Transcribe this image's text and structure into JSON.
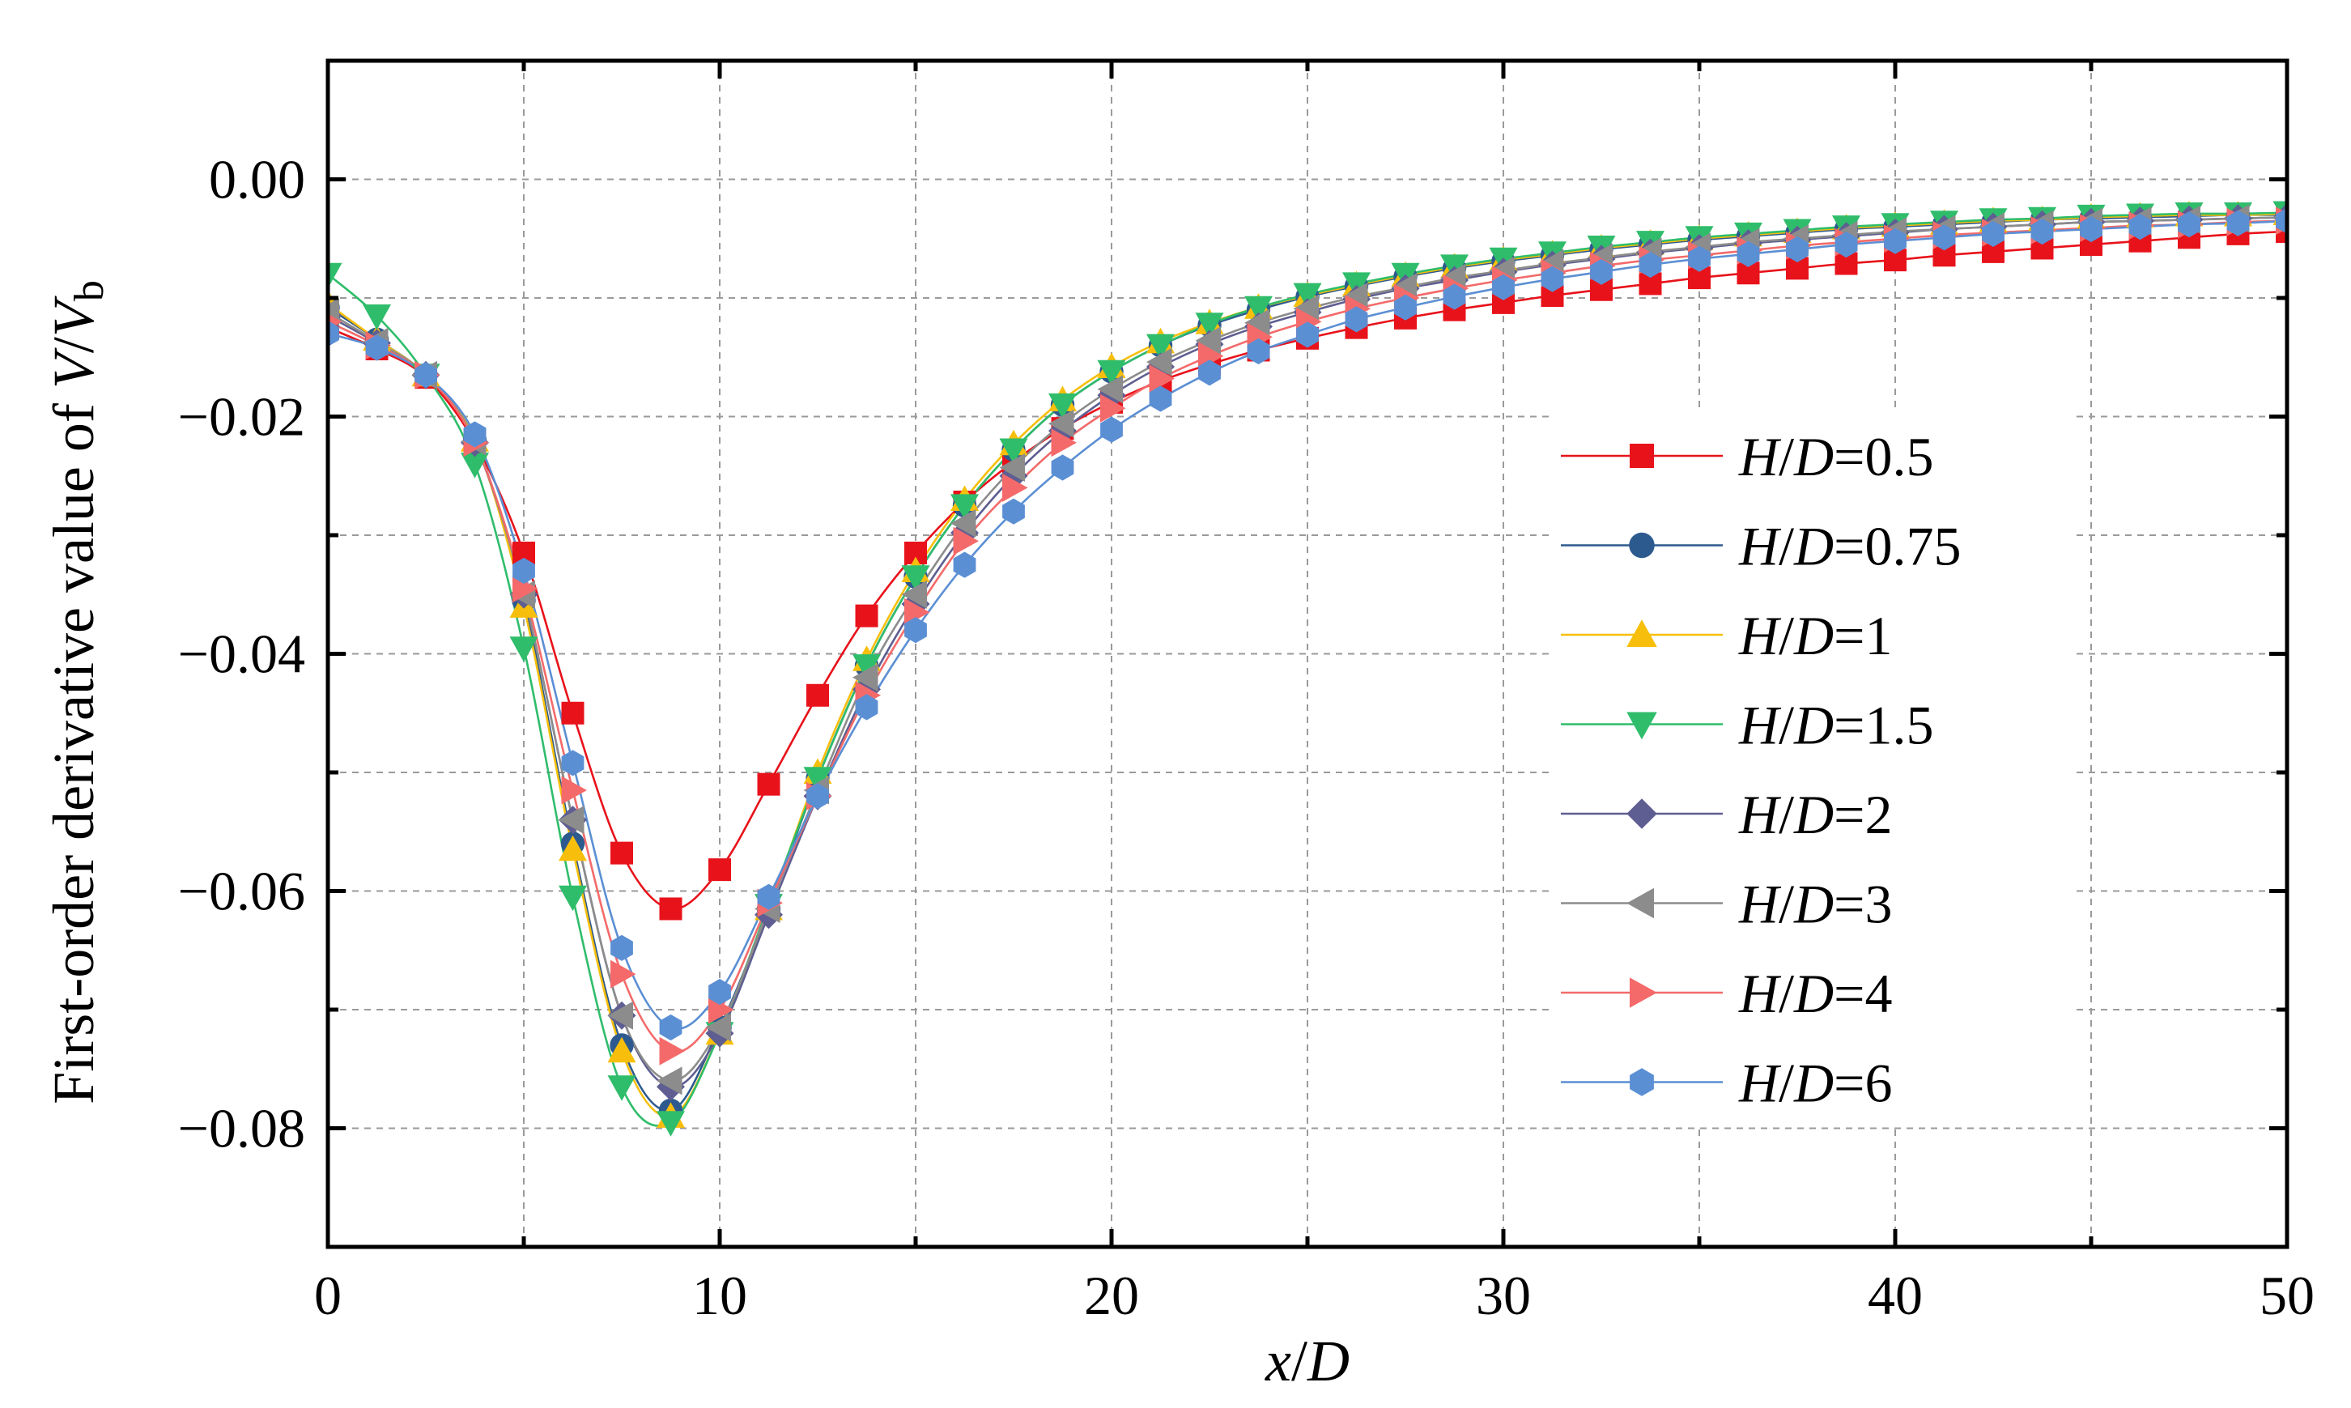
{
  "chart_data": {
    "type": "line",
    "title": "",
    "xlabel": "x/D",
    "ylabel": "First-order derivative value of V/V_b",
    "ylabel_parts": {
      "prefix": "First-order derivative value of ",
      "var1": "V",
      "slash": "/",
      "var2": "V",
      "sub": "b"
    },
    "xlabel_parts": {
      "var1": "x",
      "slash": "/",
      "var2": "D"
    },
    "xlim": [
      0,
      50
    ],
    "ylim": [
      -0.09,
      0.01
    ],
    "xticks": [
      0,
      10,
      20,
      30,
      40,
      50
    ],
    "xtick_labels": [
      "0",
      "10",
      "20",
      "30",
      "40",
      "50"
    ],
    "yticks": [
      0.0,
      -0.02,
      -0.04,
      -0.06,
      -0.08
    ],
    "ytick_labels": [
      "0.00",
      "−0.02",
      "−0.04",
      "−0.06",
      "−0.08"
    ],
    "grid": true,
    "legend_position": "center-right",
    "x": [
      0,
      1.25,
      2.5,
      3.75,
      5,
      6.25,
      7.5,
      8.75,
      10,
      11.25,
      12.5,
      13.75,
      15,
      16.25,
      17.5,
      18.75,
      20,
      21.25,
      22.5,
      23.75,
      25,
      26.25,
      27.5,
      28.75,
      30,
      31.25,
      32.5,
      33.75,
      35,
      36.25,
      37.5,
      38.75,
      40,
      41.25,
      42.5,
      43.75,
      45,
      46.25,
      47.5,
      48.75,
      50
    ],
    "series": [
      {
        "name": "H/D=0.5",
        "label_num": "0.5",
        "color": "#e8121a",
        "marker": "square",
        "values": [
          -0.0125,
          -0.0143,
          -0.0167,
          -0.0222,
          -0.0315,
          -0.045,
          -0.0568,
          -0.0615,
          -0.0582,
          -0.051,
          -0.0435,
          -0.0368,
          -0.0315,
          -0.0272,
          -0.0238,
          -0.021,
          -0.0188,
          -0.017,
          -0.0156,
          -0.0144,
          -0.0134,
          -0.0125,
          -0.0117,
          -0.011,
          -0.0104,
          -0.0098,
          -0.0093,
          -0.0088,
          -0.0083,
          -0.0079,
          -0.0075,
          -0.0071,
          -0.0068,
          -0.0064,
          -0.0061,
          -0.0058,
          -0.0055,
          -0.0052,
          -0.0049,
          -0.0046,
          -0.0044
        ]
      },
      {
        "name": "H/D=0.75",
        "label_num": "0.75",
        "color": "#2d5a8e",
        "marker": "circle",
        "values": [
          -0.0108,
          -0.0135,
          -0.0165,
          -0.022,
          -0.0355,
          -0.056,
          -0.073,
          -0.0785,
          -0.0715,
          -0.0615,
          -0.0505,
          -0.041,
          -0.0335,
          -0.0275,
          -0.0228,
          -0.019,
          -0.0162,
          -0.014,
          -0.0123,
          -0.011,
          -0.0099,
          -0.009,
          -0.0082,
          -0.0075,
          -0.0069,
          -0.0064,
          -0.0059,
          -0.0055,
          -0.0051,
          -0.0048,
          -0.0045,
          -0.0042,
          -0.004,
          -0.0038,
          -0.0036,
          -0.0034,
          -0.0033,
          -0.0032,
          -0.0031,
          -0.003,
          -0.003
        ]
      },
      {
        "name": "H/D=1",
        "label_num": "1",
        "color": "#f7bf0b",
        "marker": "triangle-up",
        "values": [
          -0.0105,
          -0.0135,
          -0.0165,
          -0.022,
          -0.036,
          -0.0565,
          -0.0735,
          -0.079,
          -0.072,
          -0.0615,
          -0.05,
          -0.0405,
          -0.033,
          -0.027,
          -0.0223,
          -0.0186,
          -0.0158,
          -0.0137,
          -0.0121,
          -0.0108,
          -0.0098,
          -0.0089,
          -0.0081,
          -0.0074,
          -0.0068,
          -0.0063,
          -0.0058,
          -0.0054,
          -0.005,
          -0.0047,
          -0.0044,
          -0.0041,
          -0.0039,
          -0.0037,
          -0.0035,
          -0.0034,
          -0.0032,
          -0.0031,
          -0.003,
          -0.003,
          -0.0029
        ]
      },
      {
        "name": "H/D=1.5",
        "label_num": "1.5",
        "color": "#2fbd6b",
        "marker": "triangle-down",
        "values": [
          -0.008,
          -0.0115,
          -0.0165,
          -0.024,
          -0.0395,
          -0.0605,
          -0.0765,
          -0.0795,
          -0.072,
          -0.0612,
          -0.0505,
          -0.041,
          -0.0335,
          -0.0275,
          -0.0228,
          -0.019,
          -0.0162,
          -0.014,
          -0.0122,
          -0.0108,
          -0.0097,
          -0.0088,
          -0.008,
          -0.0073,
          -0.0067,
          -0.0062,
          -0.0057,
          -0.0053,
          -0.0049,
          -0.0046,
          -0.0043,
          -0.004,
          -0.0038,
          -0.0036,
          -0.0034,
          -0.0033,
          -0.0031,
          -0.003,
          -0.0029,
          -0.0029,
          -0.0028
        ]
      },
      {
        "name": "H/D=2",
        "label_num": "2",
        "color": "#5e5e92",
        "marker": "diamond",
        "values": [
          -0.0115,
          -0.0138,
          -0.0165,
          -0.0222,
          -0.035,
          -0.054,
          -0.0705,
          -0.0765,
          -0.072,
          -0.062,
          -0.052,
          -0.043,
          -0.0358,
          -0.0298,
          -0.025,
          -0.0212,
          -0.0182,
          -0.0158,
          -0.0139,
          -0.0124,
          -0.0112,
          -0.0101,
          -0.0092,
          -0.0085,
          -0.0078,
          -0.0072,
          -0.0067,
          -0.0062,
          -0.0058,
          -0.0054,
          -0.0051,
          -0.0048,
          -0.0045,
          -0.0042,
          -0.004,
          -0.0038,
          -0.0036,
          -0.0035,
          -0.0034,
          -0.0033,
          -0.0032
        ]
      },
      {
        "name": "H/D=3",
        "label_num": "3",
        "color": "#8c8c8c",
        "marker": "triangle-left",
        "values": [
          -0.0112,
          -0.0137,
          -0.0165,
          -0.0221,
          -0.035,
          -0.054,
          -0.0705,
          -0.076,
          -0.0715,
          -0.0615,
          -0.0515,
          -0.042,
          -0.035,
          -0.029,
          -0.0243,
          -0.0206,
          -0.0177,
          -0.0154,
          -0.0136,
          -0.0121,
          -0.0109,
          -0.0099,
          -0.0091,
          -0.0083,
          -0.0077,
          -0.0071,
          -0.0066,
          -0.0061,
          -0.0057,
          -0.0053,
          -0.005,
          -0.0047,
          -0.0044,
          -0.0042,
          -0.004,
          -0.0038,
          -0.0036,
          -0.0035,
          -0.0034,
          -0.0033,
          -0.0032
        ]
      },
      {
        "name": "H/D=4",
        "label_num": "4",
        "color": "#f46a6a",
        "marker": "triangle-right",
        "values": [
          -0.012,
          -0.014,
          -0.0165,
          -0.0222,
          -0.0345,
          -0.0515,
          -0.067,
          -0.0735,
          -0.07,
          -0.061,
          -0.052,
          -0.0435,
          -0.0365,
          -0.0305,
          -0.026,
          -0.0222,
          -0.0193,
          -0.0168,
          -0.0149,
          -0.0133,
          -0.012,
          -0.0109,
          -0.01,
          -0.0092,
          -0.0085,
          -0.0079,
          -0.0073,
          -0.0068,
          -0.0064,
          -0.006,
          -0.0056,
          -0.0053,
          -0.005,
          -0.0047,
          -0.0045,
          -0.0043,
          -0.0041,
          -0.0039,
          -0.0038,
          -0.0036,
          -0.0035
        ]
      },
      {
        "name": "H/D=6",
        "label_num": "6",
        "color": "#5b8fd4",
        "marker": "hexagon",
        "values": [
          -0.013,
          -0.0142,
          -0.0165,
          -0.0215,
          -0.033,
          -0.0492,
          -0.0648,
          -0.0715,
          -0.0685,
          -0.0605,
          -0.052,
          -0.0445,
          -0.038,
          -0.0325,
          -0.028,
          -0.0243,
          -0.0211,
          -0.0185,
          -0.0163,
          -0.0145,
          -0.0131,
          -0.0118,
          -0.0108,
          -0.0099,
          -0.0091,
          -0.0084,
          -0.0078,
          -0.0072,
          -0.0067,
          -0.0063,
          -0.0059,
          -0.0055,
          -0.0052,
          -0.0049,
          -0.0046,
          -0.0044,
          -0.0042,
          -0.004,
          -0.0038,
          -0.0037,
          -0.0035
        ]
      }
    ]
  }
}
